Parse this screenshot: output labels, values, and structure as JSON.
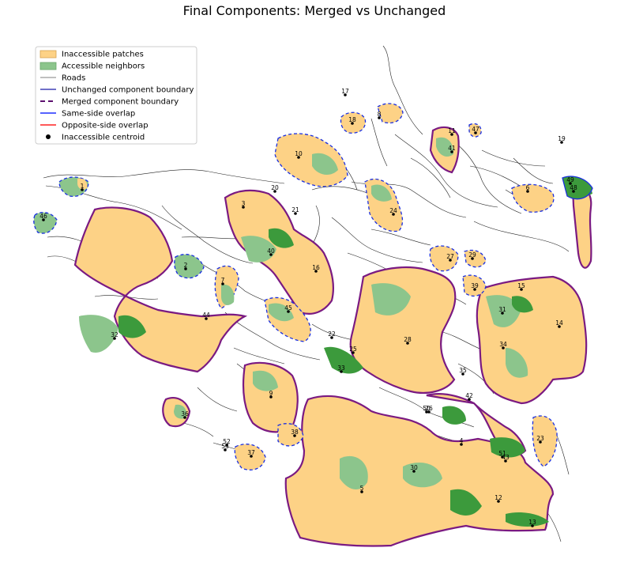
{
  "chart_data": {
    "type": "map",
    "title": "Final Components: Merged vs Unchanged",
    "xlabel": "",
    "ylabel": "",
    "grid": false,
    "axes_visible": false,
    "legend_placement": "top-left",
    "legend": [
      {
        "label": "Inaccessible patches",
        "kind": "patch",
        "color": "#fdd286",
        "edge": "#d6a24e"
      },
      {
        "label": "Accessible neighbors",
        "kind": "patch",
        "color": "#8cc58c",
        "edge": "#6aa56a"
      },
      {
        "label": "Roads",
        "kind": "line",
        "color": "#000000",
        "dash": "none",
        "width": 0.6
      },
      {
        "label": "Unchanged component boundary",
        "kind": "line",
        "color": "#1a1aa8",
        "dash": "none",
        "width": 1.2
      },
      {
        "label": "Merged component boundary",
        "kind": "line",
        "color": "#5c0f6e",
        "dash": "6,4",
        "width": 2
      },
      {
        "label": "Same-side overlap",
        "kind": "line",
        "color": "#1f2fff",
        "dash": "none",
        "width": 1.5
      },
      {
        "label": "Opposite-side overlap",
        "kind": "line",
        "color": "#ff2020",
        "dash": "none",
        "width": 1.5
      },
      {
        "label": "Inaccessible centroid",
        "kind": "dot",
        "color": "#000000"
      }
    ],
    "colors": {
      "inaccessible": "#fdd286",
      "accessible": "#8cc58c",
      "accessible_dark": "#3c9a3c",
      "merged_boundary": "#7a1a82",
      "unchanged_boundary": "#1a2fe0",
      "road": "#222222"
    },
    "centroids": [
      {
        "id": "1"
      },
      {
        "id": "2"
      },
      {
        "id": "3"
      },
      {
        "id": "4"
      },
      {
        "id": "5"
      },
      {
        "id": "6"
      },
      {
        "id": "7"
      },
      {
        "id": "8"
      },
      {
        "id": "9"
      },
      {
        "id": "10"
      },
      {
        "id": "11"
      },
      {
        "id": "12"
      },
      {
        "id": "13"
      },
      {
        "id": "14"
      },
      {
        "id": "15"
      },
      {
        "id": "16"
      },
      {
        "id": "17"
      },
      {
        "id": "18"
      },
      {
        "id": "19"
      },
      {
        "id": "20"
      },
      {
        "id": "21"
      },
      {
        "id": "22"
      },
      {
        "id": "23"
      },
      {
        "id": "24"
      },
      {
        "id": "25"
      },
      {
        "id": "26"
      },
      {
        "id": "27"
      },
      {
        "id": "28"
      },
      {
        "id": "29"
      },
      {
        "id": "30"
      },
      {
        "id": "31"
      },
      {
        "id": "32"
      },
      {
        "id": "33"
      },
      {
        "id": "34"
      },
      {
        "id": "35"
      },
      {
        "id": "36"
      },
      {
        "id": "37"
      },
      {
        "id": "38"
      },
      {
        "id": "39"
      },
      {
        "id": "40"
      },
      {
        "id": "41"
      },
      {
        "id": "42"
      },
      {
        "id": "43"
      },
      {
        "id": "44"
      },
      {
        "id": "45"
      },
      {
        "id": "46"
      },
      {
        "id": "47"
      },
      {
        "id": "48"
      },
      {
        "id": "49"
      },
      {
        "id": "50"
      },
      {
        "id": "51"
      },
      {
        "id": "52"
      },
      {
        "id": "53"
      }
    ]
  }
}
